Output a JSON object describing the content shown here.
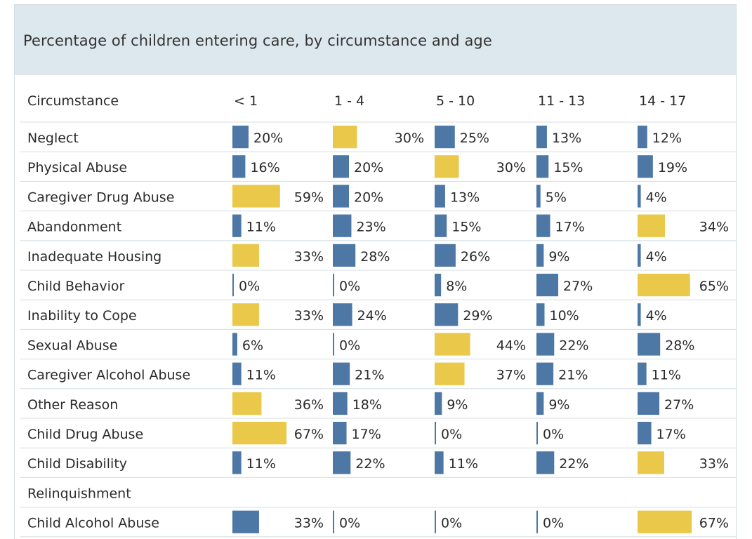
{
  "header": {
    "title": "Percentage of children entering care, by circumstance and age"
  },
  "colors": {
    "header_background": "#dde8ee",
    "highest_bar": "#eac84a",
    "other_bar": "#4d77a5",
    "divider": "#d4dde2"
  },
  "chart_data": {
    "type": "bar",
    "layout": "small-multiples table",
    "row_header": "Circumstance",
    "categories": [
      "Neglect",
      "Physical Abuse",
      "Caregiver Drug Abuse",
      "Abandonment",
      "Inadequate Housing",
      "Child Behavior",
      "Inability to Cope",
      "Sexual Abuse",
      "Caregiver Alcohol Abuse",
      "Other Reason",
      "Child Drug Abuse",
      "Child Disability",
      "Relinquishment",
      "Child Alcohol Abuse"
    ],
    "value_format": "percent",
    "highlight": "highest age group per circumstance",
    "series": [
      {
        "name": "< 1",
        "values": [
          20,
          16,
          59,
          11,
          33,
          0,
          33,
          6,
          11,
          36,
          67,
          11,
          null,
          33
        ]
      },
      {
        "name": "1 - 4",
        "values": [
          30,
          20,
          20,
          23,
          28,
          0,
          24,
          0,
          21,
          18,
          17,
          22,
          null,
          0
        ]
      },
      {
        "name": "5 - 10",
        "values": [
          25,
          30,
          13,
          15,
          26,
          8,
          29,
          44,
          37,
          9,
          0,
          11,
          null,
          0
        ]
      },
      {
        "name": "11 - 13",
        "values": [
          13,
          15,
          5,
          17,
          9,
          27,
          10,
          22,
          21,
          9,
          0,
          22,
          null,
          0
        ]
      },
      {
        "name": "14 - 17",
        "values": [
          12,
          19,
          4,
          34,
          4,
          65,
          4,
          28,
          11,
          27,
          17,
          33,
          null,
          67
        ]
      }
    ],
    "highlighted_series_index": [
      1,
      2,
      0,
      4,
      0,
      4,
      0,
      2,
      2,
      0,
      0,
      4,
      null,
      4
    ]
  }
}
